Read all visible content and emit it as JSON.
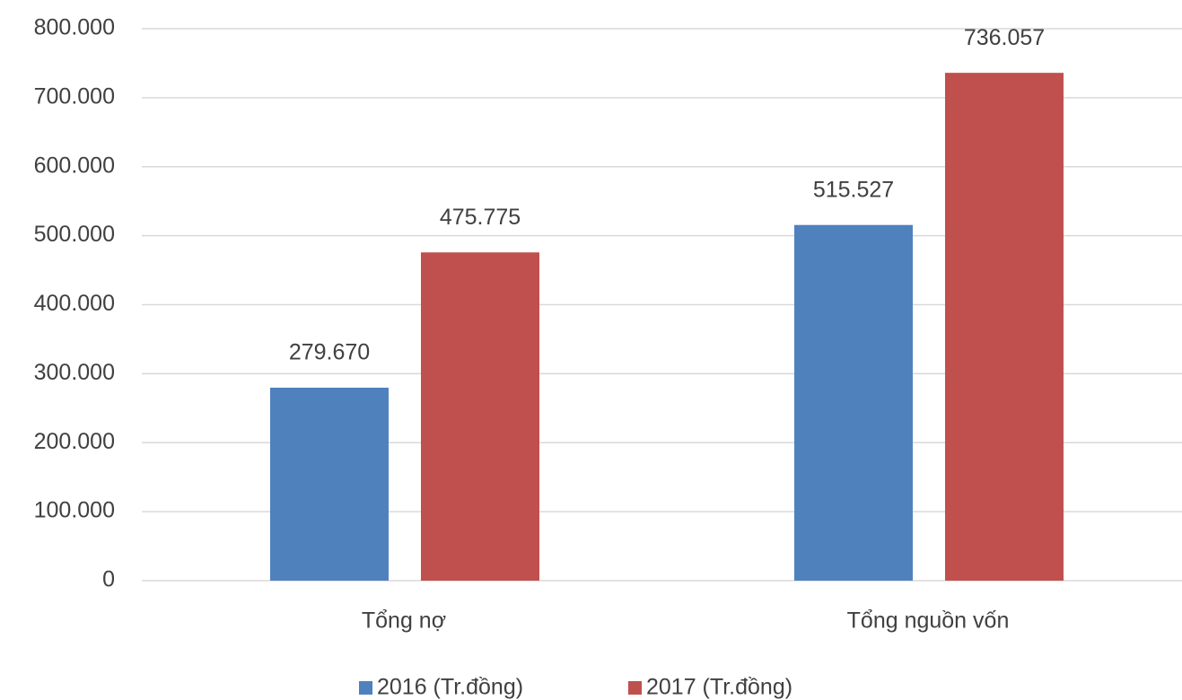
{
  "chart_data": {
    "type": "bar",
    "categories": [
      "Tổng nợ",
      "Tổng nguồn vốn"
    ],
    "series": [
      {
        "name": "2016 (Tr.đồng)",
        "color": "#4f81bd",
        "values": [
          279670,
          515527
        ],
        "value_labels": [
          "279.670",
          "515.527"
        ]
      },
      {
        "name": "2017 (Tr.đồng)",
        "color": "#c0504d",
        "values": [
          475775,
          736057
        ],
        "value_labels": [
          "475.775",
          "736.057"
        ]
      }
    ],
    "ylim": [
      0,
      800000
    ],
    "yticks": [
      0,
      {
        "value": 100000,
        "label": "100.000"
      },
      {
        "value": 200000,
        "label": "200.000"
      },
      {
        "value": 300000,
        "label": "300.000"
      },
      {
        "value": 400000,
        "label": "400.000"
      },
      {
        "value": 500000,
        "label": "500.000"
      },
      {
        "value": 600000,
        "label": "600.000"
      },
      {
        "value": 700000,
        "label": "700.000"
      },
      {
        "value": 800000,
        "label": "800.000"
      }
    ],
    "grid": true,
    "legend": "bottom"
  }
}
